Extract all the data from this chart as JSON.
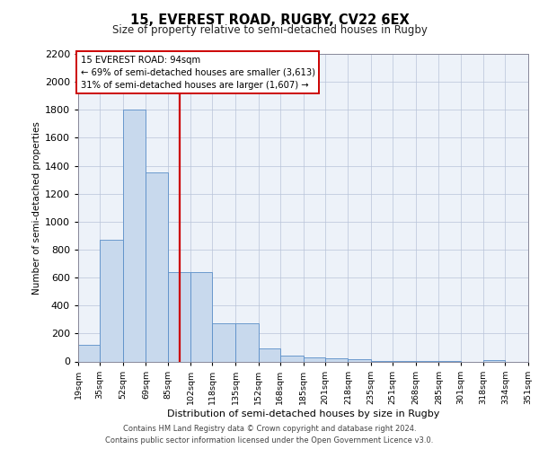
{
  "title": "15, EVEREST ROAD, RUGBY, CV22 6EX",
  "subtitle": "Size of property relative to semi-detached houses in Rugby",
  "xlabel": "Distribution of semi-detached houses by size in Rugby",
  "ylabel": "Number of semi-detached properties",
  "footer_line1": "Contains HM Land Registry data © Crown copyright and database right 2024.",
  "footer_line2": "Contains public sector information licensed under the Open Government Licence v3.0.",
  "annotation_title": "15 EVEREST ROAD: 94sqm",
  "annotation_line1": "← 69% of semi-detached houses are smaller (3,613)",
  "annotation_line2": "31% of semi-detached houses are larger (1,607) →",
  "property_size": 94,
  "bar_color": "#c8d9ed",
  "bar_edge_color": "#5a8ec8",
  "vline_color": "#cc0000",
  "annotation_box_color": "#ffffff",
  "annotation_box_edge": "#cc0000",
  "bin_edges": [
    19,
    35,
    52,
    69,
    85,
    102,
    118,
    135,
    152,
    168,
    185,
    201,
    218,
    235,
    251,
    268,
    285,
    301,
    318,
    334,
    351
  ],
  "bin_labels": [
    "19sqm",
    "35sqm",
    "52sqm",
    "69sqm",
    "85sqm",
    "102sqm",
    "118sqm",
    "135sqm",
    "152sqm",
    "168sqm",
    "185sqm",
    "201sqm",
    "218sqm",
    "235sqm",
    "251sqm",
    "268sqm",
    "285sqm",
    "301sqm",
    "318sqm",
    "334sqm",
    "351sqm"
  ],
  "counts": [
    120,
    870,
    1800,
    1350,
    640,
    640,
    270,
    270,
    95,
    40,
    30,
    20,
    15,
    5,
    3,
    2,
    1,
    0,
    12,
    0,
    0
  ],
  "ylim": [
    0,
    2200
  ],
  "yticks": [
    0,
    200,
    400,
    600,
    800,
    1000,
    1200,
    1400,
    1600,
    1800,
    2000,
    2200
  ],
  "plot_bg_color": "#edf2f9"
}
